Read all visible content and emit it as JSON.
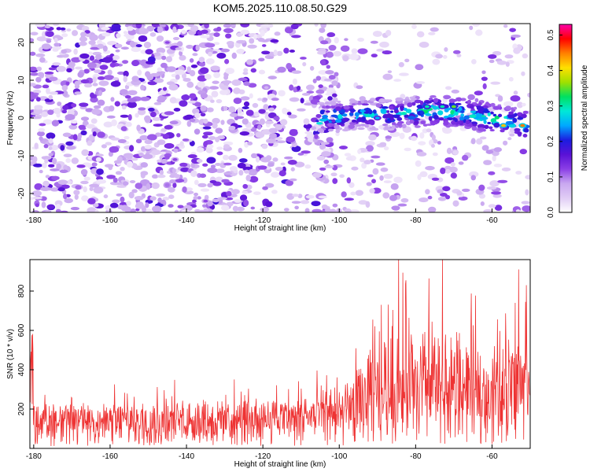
{
  "title": "KOM5.2025.110.08.50.G29",
  "chart_data": [
    {
      "type": "heatmap",
      "xlabel": "Height of straight line (km)",
      "ylabel": "Frequency (Hz)",
      "xlim": [
        -181,
        -50
      ],
      "ylim": [
        -25,
        25
      ],
      "xticks": [
        -180,
        -160,
        -140,
        -120,
        -100,
        -80,
        -60
      ],
      "yticks": [
        20,
        10,
        0,
        -10,
        -20
      ],
      "colorbar": {
        "label": "Normalized spectral amplitude",
        "range": [
          0.0,
          0.53
        ],
        "ticks": [
          0.5,
          0.4,
          0.3,
          0.2,
          0.1,
          0.0
        ],
        "colormap": [
          "#ffffff",
          "#e0ccf5",
          "#c9a8f0",
          "#8b3fe6",
          "#5a12d6",
          "#1c1ce0",
          "#00a8ff",
          "#00e8d8",
          "#00e060",
          "#a0e000",
          "#ffe000",
          "#ff8000",
          "#ff0000",
          "#ff00aa"
        ]
      },
      "description_band": {
        "frequency_center_hz": [
          [
            -105,
            0
          ],
          [
            -95,
            1
          ],
          [
            -85,
            1
          ],
          [
            -75,
            2
          ],
          [
            -65,
            1
          ],
          [
            -55,
            -1
          ],
          [
            -51,
            -2
          ]
        ],
        "peak_amplitude": 0.45
      },
      "hot_spots": [
        {
          "x": -52,
          "y": -2,
          "amp": 0.45
        },
        {
          "x": -57,
          "y": -2,
          "amp": 0.42
        },
        {
          "x": -70,
          "y": 3,
          "amp": 0.35
        },
        {
          "x": -73,
          "y": 3,
          "amp": 0.3
        },
        {
          "x": -77,
          "y": 3,
          "amp": 0.3
        },
        {
          "x": -90,
          "y": 0,
          "amp": 0.25
        },
        {
          "x": -145,
          "y": 20,
          "amp": 0.12
        },
        {
          "x": -135,
          "y": -22,
          "amp": 0.12
        },
        {
          "x": -143,
          "y": -11,
          "amp": 0.12
        }
      ]
    },
    {
      "type": "line",
      "xlabel": "Height of straight line (km)",
      "ylabel": "SNR (10 * v/v)",
      "xlim": [
        -181,
        -50
      ],
      "ylim": [
        0,
        960
      ],
      "xticks": [
        -180,
        -160,
        -140,
        -120,
        -100,
        -80,
        -60
      ],
      "yticks": [
        200,
        400,
        600,
        800
      ],
      "color": "#ee3333",
      "envelope": [
        {
          "x": -180,
          "low": 10,
          "mean": 130,
          "high": 310
        },
        {
          "x": -160,
          "low": 10,
          "mean": 130,
          "high": 330
        },
        {
          "x": -140,
          "low": 10,
          "mean": 135,
          "high": 360
        },
        {
          "x": -120,
          "low": 10,
          "mean": 140,
          "high": 350
        },
        {
          "x": -100,
          "low": 10,
          "mean": 160,
          "high": 420
        },
        {
          "x": -90,
          "low": 20,
          "mean": 260,
          "high": 820
        },
        {
          "x": -80,
          "low": 20,
          "mean": 290,
          "high": 960
        },
        {
          "x": -70,
          "low": 20,
          "mean": 270,
          "high": 880
        },
        {
          "x": -60,
          "low": 20,
          "mean": 260,
          "high": 700
        },
        {
          "x": -52,
          "low": 30,
          "mean": 340,
          "high": 900
        }
      ],
      "peaks": [
        {
          "x": -84.5,
          "y": 960
        },
        {
          "x": -73,
          "y": 960
        },
        {
          "x": -53,
          "y": 910
        },
        {
          "x": -51,
          "y": 830
        }
      ]
    }
  ]
}
